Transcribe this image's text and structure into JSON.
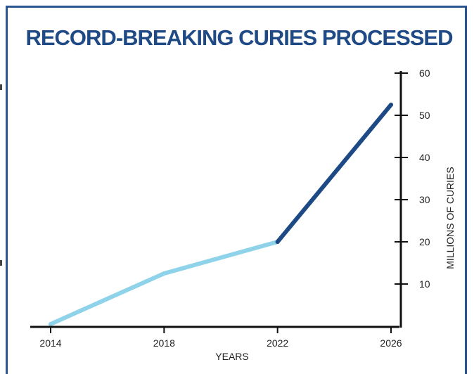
{
  "chart_data": {
    "type": "line",
    "title": "RECORD-BREAKING CURIES PROCESSED",
    "xlabel": "YEARS",
    "ylabel": "MILLIONS OF CURIES",
    "x_ticks": [
      "2014",
      "2018",
      "2022",
      "2026"
    ],
    "y_ticks": [
      "10",
      "20",
      "30",
      "40",
      "50",
      "60"
    ],
    "xlim": [
      2014,
      2026
    ],
    "ylim": [
      0,
      60
    ],
    "y_axis_position": "right",
    "grid": false,
    "series": [
      {
        "color": "#8fd3ea",
        "points": [
          {
            "x": 2014,
            "y": 0.5
          },
          {
            "x": 2018,
            "y": 12.5
          },
          {
            "x": 2022,
            "y": 20
          }
        ]
      },
      {
        "color": "#1d4a85",
        "points": [
          {
            "x": 2022,
            "y": 20
          },
          {
            "x": 2026,
            "y": 52.5
          }
        ]
      }
    ]
  }
}
